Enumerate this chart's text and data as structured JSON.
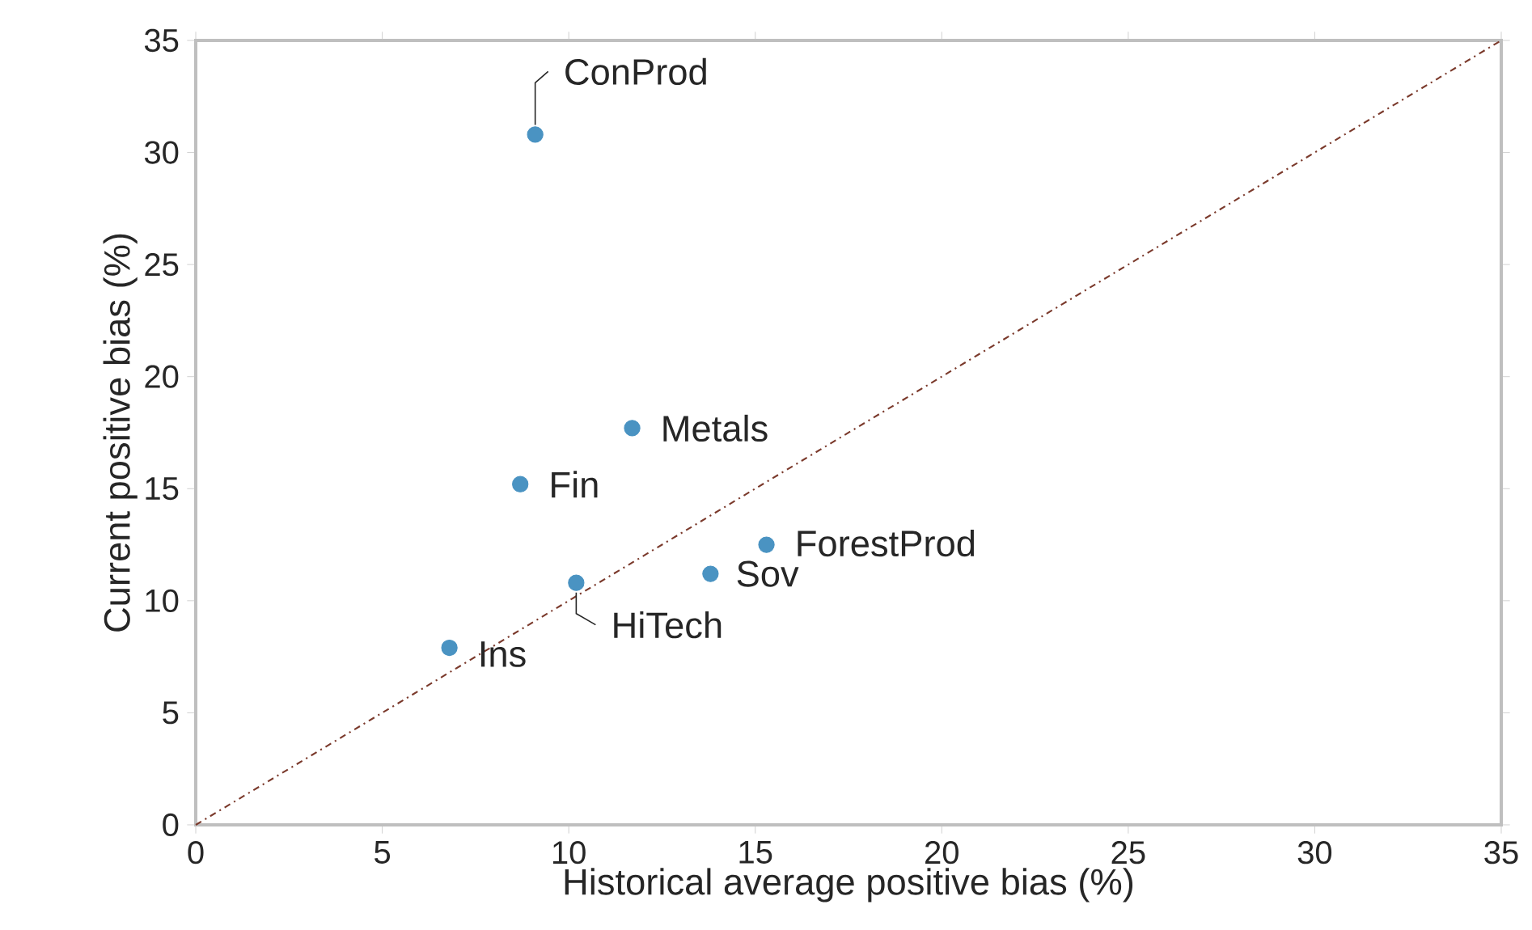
{
  "chart_data": {
    "type": "scatter",
    "xlabel": "Historical average positive bias (%)",
    "ylabel": "Current positive bias (%)",
    "series": [
      {
        "color": "#4a93c2",
        "x": [
          9.1,
          11.7,
          8.7,
          15.3,
          13.8,
          10.2,
          6.8
        ],
        "values": [
          30.8,
          17.7,
          15.2,
          12.5,
          11.2,
          10.8,
          7.9
        ]
      },
      {
        "type": "line",
        "color": "#7b3a2c",
        "line_style": "dashdot",
        "marker": "none",
        "x": [
          0,
          35
        ],
        "values": [
          0,
          35
        ]
      }
    ],
    "annotations": [
      {
        "text": "ConProd",
        "x": 9.1,
        "y": 30.8
      },
      {
        "text": "Metals",
        "x": 11.7,
        "y": 17.7
      },
      {
        "text": "Fin",
        "x": 8.7,
        "y": 15.2
      },
      {
        "text": "ForestProd",
        "x": 15.3,
        "y": 12.5
      },
      {
        "text": "Sov",
        "x": 13.8,
        "y": 11.2
      },
      {
        "text": "HiTech",
        "x": 10.2,
        "y": 10.8
      },
      {
        "text": "Ins",
        "x": 6.8,
        "y": 7.9
      }
    ],
    "xlim": [
      0,
      35
    ],
    "ylim": [
      0,
      35
    ],
    "xticks": [
      0,
      5,
      10,
      15,
      20,
      25,
      30,
      35
    ],
    "yticks": [
      0,
      5,
      10,
      15,
      20,
      25,
      30,
      35
    ],
    "marker": "circle"
  }
}
